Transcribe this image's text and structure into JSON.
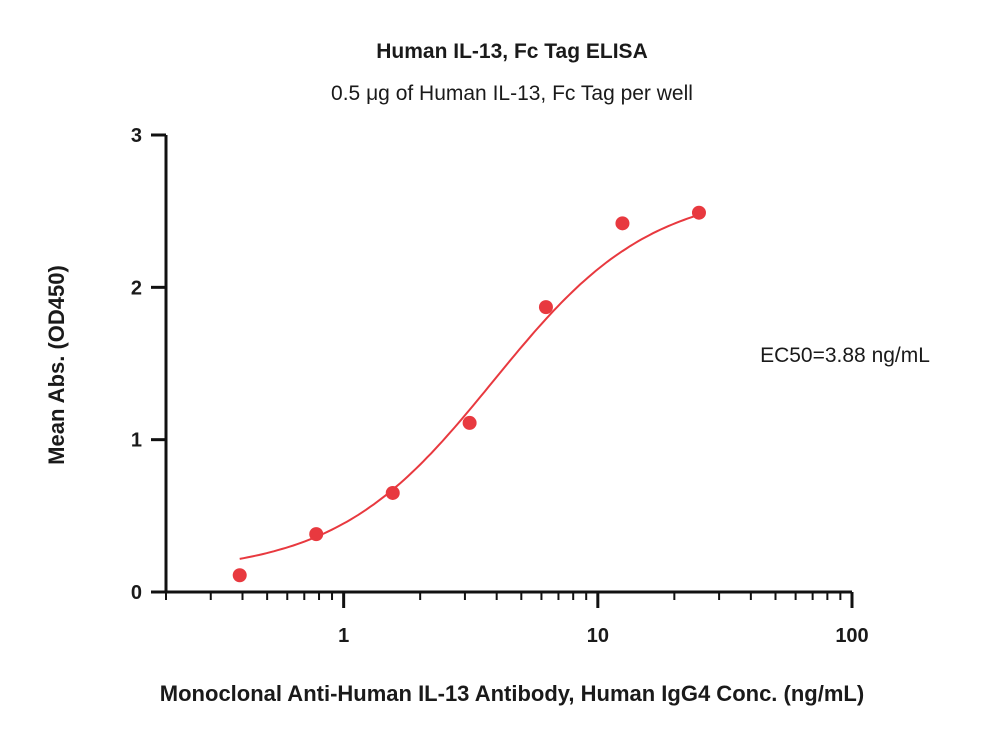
{
  "chart_data": {
    "type": "scatter",
    "title": "Human IL-13, Fc Tag ELISA",
    "subtitle": "0.5 μg of Human IL-13, Fc Tag per well",
    "xlabel": "Monoclonal Anti-Human IL-13 Antibody, Human IgG4 Conc. (ng/mL)",
    "ylabel": "Mean Abs. (OD450)",
    "x_scale": "log",
    "xlim": [
      0.2,
      100
    ],
    "ylim": [
      0,
      3
    ],
    "x_ticks": [
      1,
      10,
      100
    ],
    "x_tick_labels": [
      "1",
      "10",
      "100"
    ],
    "y_ticks": [
      0,
      1,
      2,
      3
    ],
    "y_tick_labels": [
      "0",
      "1",
      "2",
      "3"
    ],
    "grid": false,
    "colors": {
      "series": "#e8393f",
      "axis": "#111111"
    },
    "series": [
      {
        "x": [
          0.39,
          0.78,
          1.56,
          3.13,
          6.25,
          12.5,
          25
        ],
        "values": [
          0.11,
          0.38,
          0.65,
          1.11,
          1.87,
          2.42,
          2.49
        ]
      }
    ],
    "fit_curve": {
      "model": "4PL",
      "bottom": 0.12,
      "top": 2.65,
      "ec50": 3.88,
      "hill": 1.4,
      "x_range": [
        0.39,
        25
      ]
    },
    "annotation": "EC50=3.88 ng/mL"
  }
}
